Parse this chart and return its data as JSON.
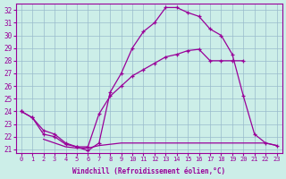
{
  "xlabel": "Windchill (Refroidissement éolien,°C)",
  "bg_color": "#cceee8",
  "grid_color": "#99bbcc",
  "line_color": "#990099",
  "ylim": [
    20.7,
    32.5
  ],
  "xlim": [
    -0.5,
    23.5
  ],
  "yticks": [
    21,
    22,
    23,
    24,
    25,
    26,
    27,
    28,
    29,
    30,
    31,
    32
  ],
  "xticks": [
    0,
    1,
    2,
    3,
    4,
    5,
    6,
    7,
    8,
    9,
    10,
    11,
    12,
    13,
    14,
    15,
    16,
    17,
    18,
    19,
    20,
    21,
    22,
    23
  ],
  "line1_x": [
    0,
    1,
    2,
    3,
    4,
    5,
    6,
    7,
    8,
    9,
    10,
    11,
    12,
    13,
    14,
    15,
    16,
    17,
    18,
    19,
    20,
    21,
    22,
    23
  ],
  "line1_y": [
    24.0,
    23.5,
    22.2,
    22.0,
    21.4,
    21.2,
    20.9,
    21.5,
    25.5,
    27.0,
    29.0,
    30.3,
    31.0,
    32.2,
    32.2,
    31.8,
    31.5,
    30.5,
    30.0,
    28.5,
    25.2,
    22.2,
    21.5,
    21.3
  ],
  "line2_x": [
    0,
    1,
    2,
    3,
    4,
    5,
    6,
    7,
    8,
    9,
    10,
    11,
    12,
    13,
    14,
    15,
    16,
    17,
    18,
    19,
    20
  ],
  "line2_y": [
    24.0,
    23.5,
    22.5,
    22.2,
    21.5,
    21.2,
    21.2,
    23.8,
    25.2,
    26.0,
    26.8,
    27.3,
    27.8,
    28.3,
    28.5,
    28.8,
    28.9,
    28.0,
    28.0,
    28.0,
    28.0
  ],
  "line3_x": [
    2,
    3,
    4,
    5,
    6,
    7,
    8,
    9,
    10,
    11,
    12,
    13,
    14,
    15,
    16,
    17,
    18,
    19,
    20,
    21,
    22,
    23
  ],
  "line3_y": [
    21.8,
    21.5,
    21.2,
    21.1,
    21.1,
    21.3,
    21.4,
    21.5,
    21.5,
    21.5,
    21.5,
    21.5,
    21.5,
    21.5,
    21.5,
    21.5,
    21.5,
    21.5,
    21.5,
    21.5,
    21.5,
    21.3
  ]
}
